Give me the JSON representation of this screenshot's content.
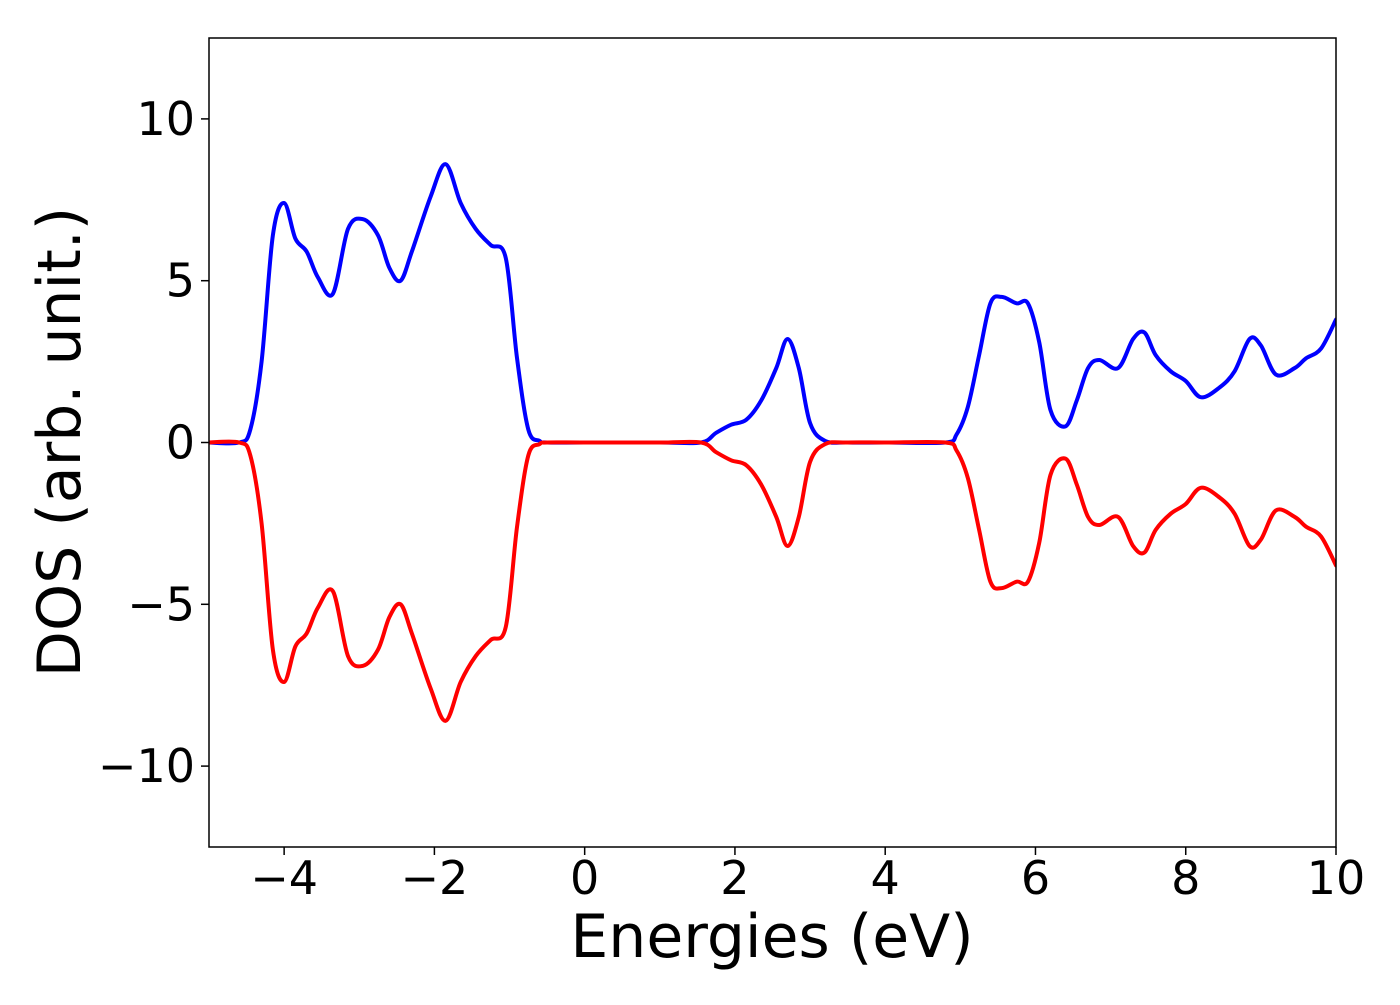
{
  "chart_data": {
    "type": "line",
    "title": "",
    "xlabel": "Energies (eV)",
    "ylabel": "DOS (arb. unit.)",
    "xlim": [
      -5,
      10
    ],
    "ylim": [
      -12.5,
      12.5
    ],
    "xticks": [
      -4,
      -2,
      0,
      2,
      4,
      6,
      8,
      10
    ],
    "xtick_labels": [
      "−4",
      "−2",
      "0",
      "2",
      "4",
      "6",
      "8",
      "10"
    ],
    "yticks": [
      10,
      5,
      0,
      -5,
      -10
    ],
    "ytick_labels": [
      "10",
      "5",
      "0",
      "−5",
      "−10"
    ],
    "grid": false,
    "legend": "none",
    "series": [
      {
        "color": "#0000ff",
        "x": [
          -5.0,
          -4.6,
          -4.45,
          -4.3,
          -4.15,
          -4.0,
          -3.85,
          -3.7,
          -3.55,
          -3.35,
          -3.15,
          -2.95,
          -2.75,
          -2.6,
          -2.45,
          -2.3,
          -2.05,
          -1.85,
          -1.65,
          -1.45,
          -1.25,
          -1.05,
          -0.9,
          -0.75,
          -0.6,
          -0.5,
          0.0,
          1.0,
          1.55,
          1.75,
          1.95,
          2.15,
          2.35,
          2.55,
          2.7,
          2.85,
          3.0,
          3.2,
          3.5,
          4.0,
          4.8,
          4.95,
          5.1,
          5.25,
          5.4,
          5.55,
          5.75,
          5.9,
          6.05,
          6.2,
          6.4,
          6.55,
          6.7,
          6.85,
          7.1,
          7.3,
          7.45,
          7.6,
          7.8,
          8.0,
          8.2,
          8.45,
          8.65,
          8.85,
          9.0,
          9.2,
          9.45,
          9.6,
          9.8,
          10.0
        ],
        "y": [
          0.0,
          0.0,
          0.4,
          2.5,
          6.4,
          7.4,
          6.3,
          5.9,
          5.1,
          4.6,
          6.6,
          6.9,
          6.4,
          5.4,
          5.0,
          5.9,
          7.6,
          8.6,
          7.4,
          6.6,
          6.1,
          5.7,
          2.6,
          0.4,
          0.05,
          0.0,
          0.0,
          0.0,
          0.0,
          0.3,
          0.55,
          0.7,
          1.3,
          2.3,
          3.2,
          2.3,
          0.6,
          0.05,
          0.0,
          0.0,
          0.0,
          0.25,
          1.1,
          2.7,
          4.3,
          4.5,
          4.3,
          4.3,
          3.1,
          1.0,
          0.5,
          1.3,
          2.3,
          2.55,
          2.3,
          3.2,
          3.4,
          2.7,
          2.2,
          1.9,
          1.4,
          1.7,
          2.2,
          3.2,
          3.0,
          2.1,
          2.3,
          2.6,
          2.9,
          3.8
        ]
      },
      {
        "color": "#ff0000",
        "x": [
          -5.0,
          -4.6,
          -4.45,
          -4.3,
          -4.15,
          -4.0,
          -3.85,
          -3.7,
          -3.55,
          -3.35,
          -3.15,
          -2.95,
          -2.75,
          -2.6,
          -2.45,
          -2.3,
          -2.05,
          -1.85,
          -1.65,
          -1.45,
          -1.25,
          -1.05,
          -0.9,
          -0.75,
          -0.6,
          -0.5,
          0.0,
          1.0,
          1.55,
          1.75,
          1.95,
          2.15,
          2.35,
          2.55,
          2.7,
          2.85,
          3.0,
          3.2,
          3.5,
          4.0,
          4.8,
          4.95,
          5.1,
          5.25,
          5.4,
          5.55,
          5.75,
          5.9,
          6.05,
          6.2,
          6.4,
          6.55,
          6.7,
          6.85,
          7.1,
          7.3,
          7.45,
          7.6,
          7.8,
          8.0,
          8.2,
          8.45,
          8.65,
          8.85,
          9.0,
          9.2,
          9.45,
          9.6,
          9.8,
          10.0
        ],
        "y": [
          0.0,
          0.0,
          -0.4,
          -2.5,
          -6.4,
          -7.4,
          -6.3,
          -5.9,
          -5.1,
          -4.6,
          -6.6,
          -6.9,
          -6.4,
          -5.4,
          -5.0,
          -5.9,
          -7.6,
          -8.6,
          -7.4,
          -6.6,
          -6.1,
          -5.7,
          -2.6,
          -0.4,
          -0.05,
          0.0,
          0.0,
          0.0,
          0.0,
          -0.3,
          -0.55,
          -0.7,
          -1.3,
          -2.3,
          -3.2,
          -2.3,
          -0.6,
          -0.05,
          0.0,
          0.0,
          0.0,
          -0.25,
          -1.1,
          -2.7,
          -4.3,
          -4.5,
          -4.3,
          -4.3,
          -3.1,
          -1.0,
          -0.5,
          -1.3,
          -2.3,
          -2.55,
          -2.3,
          -3.2,
          -3.4,
          -2.7,
          -2.2,
          -1.9,
          -1.4,
          -1.7,
          -2.2,
          -3.2,
          -3.0,
          -2.1,
          -2.3,
          -2.6,
          -2.9,
          -3.8
        ]
      }
    ]
  }
}
